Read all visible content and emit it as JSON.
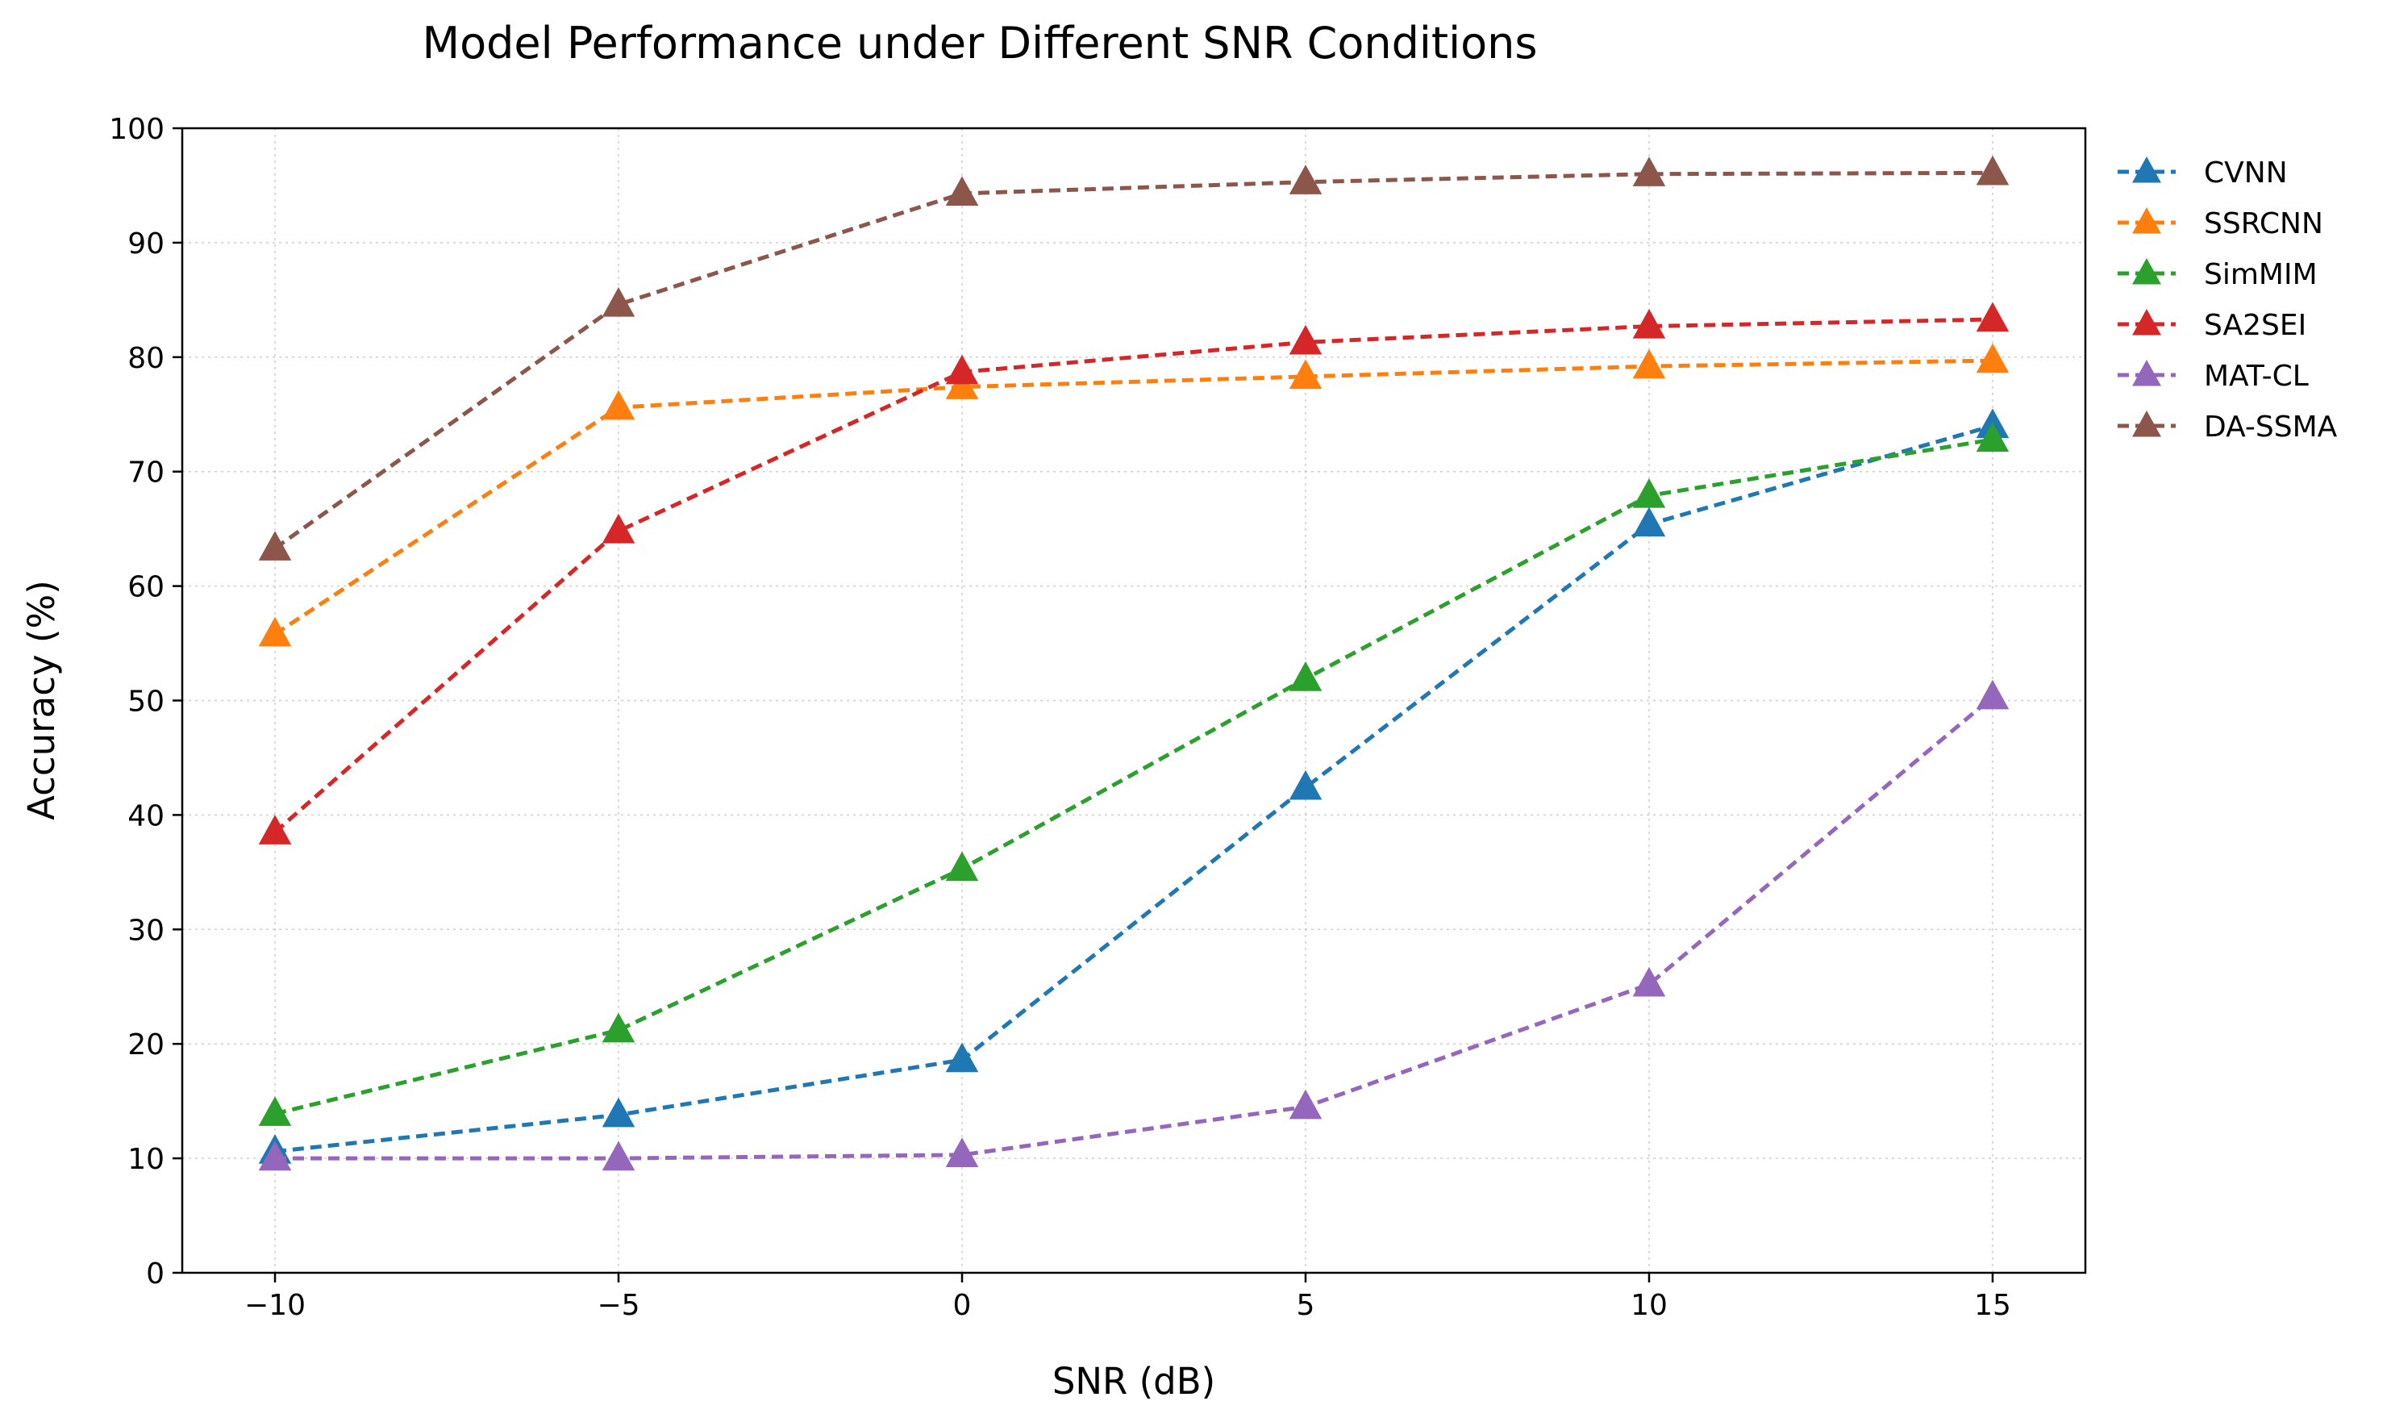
{
  "chart_data": {
    "type": "line",
    "title": "Model Performance under Different SNR Conditions",
    "xlabel": "SNR (dB)",
    "ylabel": "Accuracy (%)",
    "x": [
      -10,
      -5,
      0,
      5,
      10,
      15
    ],
    "x_tick_labels": [
      "−10",
      "−5",
      "0",
      "5",
      "10",
      "15"
    ],
    "xlim": [
      -11.35,
      16.35
    ],
    "ylim": [
      0,
      100
    ],
    "y_ticks": [
      0,
      10,
      20,
      30,
      40,
      50,
      60,
      70,
      80,
      90,
      100
    ],
    "y_tick_labels": [
      "0",
      "10",
      "20",
      "30",
      "40",
      "50",
      "60",
      "70",
      "80",
      "90",
      "100"
    ],
    "grid": true,
    "legend_position": "outside-right",
    "line_style": "dashed",
    "marker": "triangle",
    "series": [
      {
        "name": "CVNN",
        "color": "#1f77b4",
        "values": [
          10.6,
          13.8,
          18.6,
          42.4,
          65.4,
          74.0
        ]
      },
      {
        "name": "SSRCNN",
        "color": "#ff7f0e",
        "values": [
          55.8,
          75.6,
          77.4,
          78.3,
          79.2,
          79.7
        ]
      },
      {
        "name": "SimMIM",
        "color": "#2ca02c",
        "values": [
          13.9,
          21.2,
          35.3,
          51.9,
          67.9,
          72.8
        ]
      },
      {
        "name": "SA2SEI",
        "color": "#d62728",
        "values": [
          38.5,
          64.8,
          78.7,
          81.3,
          82.7,
          83.3
        ]
      },
      {
        "name": "MAT-CL",
        "color": "#9467bd",
        "values": [
          10.0,
          10.0,
          10.3,
          14.5,
          25.2,
          50.3
        ]
      },
      {
        "name": "DA-SSMA",
        "color": "#8c564b",
        "values": [
          63.3,
          84.6,
          94.3,
          95.3,
          96.0,
          96.1
        ]
      }
    ]
  }
}
